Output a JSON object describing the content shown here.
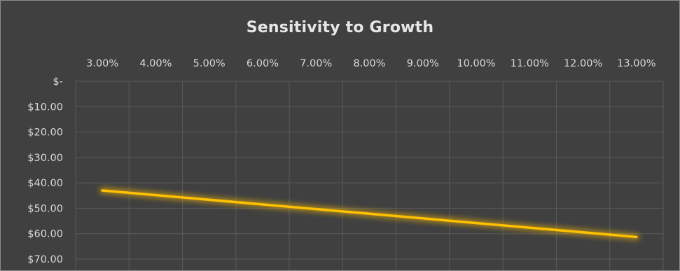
{
  "chart_data": {
    "type": "line",
    "title": "Sensitivity to Growth",
    "xlabel": "",
    "ylabel": "",
    "categories": [
      "3.00%",
      "4.00%",
      "5.00%",
      "6.00%",
      "7.00%",
      "8.00%",
      "9.00%",
      "10.00%",
      "11.00%",
      "12.00%",
      "13.00%"
    ],
    "x_values": [
      3,
      4,
      5,
      6,
      7,
      8,
      9,
      10,
      11,
      12,
      13
    ],
    "x_axis_position": "top",
    "y_axis_reversed": true,
    "ylim": [
      0,
      70
    ],
    "y_ticks": [
      0,
      10,
      20,
      30,
      40,
      50,
      60,
      70
    ],
    "y_tick_labels": [
      "$-",
      "$10.00",
      "$20.00",
      "$30.00",
      "$40.00",
      "$50.00",
      "$60.00",
      "$70.00"
    ],
    "grid": true,
    "series": [
      {
        "x": [
          3,
          13
        ],
        "values": [
          43,
          61.3
        ]
      }
    ],
    "colors": {
      "background": "#404040",
      "grid": "#5a5a5a",
      "line": "#ffc000",
      "text": "#d9d9d9"
    }
  }
}
